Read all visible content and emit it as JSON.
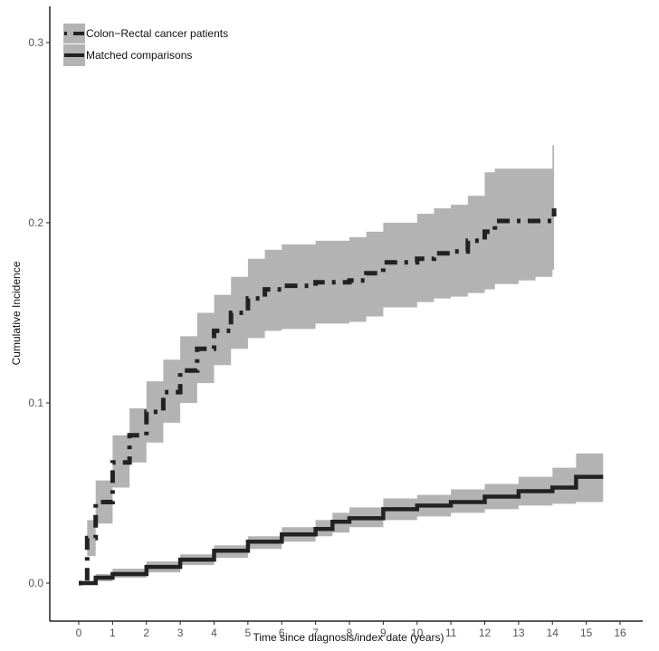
{
  "chart_data": {
    "type": "line",
    "title": "",
    "xlabel": "Time since diagnosis/index date (years)",
    "ylabel": "Cumulative Incidence",
    "xlim": [
      -0.3,
      17.2
    ],
    "ylim": [
      -0.016,
      0.31
    ],
    "x_ticks": [
      0,
      1,
      2,
      3,
      4,
      5,
      6,
      7,
      8,
      9,
      10,
      11,
      12,
      13,
      14,
      15,
      16
    ],
    "y_ticks": [
      0.0,
      0.1,
      0.2,
      0.3
    ],
    "y_tick_labels": [
      "0.0",
      "0.1",
      "0.2",
      "0.3"
    ],
    "grid": false,
    "legend_position": "top-left",
    "band_color": "#b3b3b3",
    "line_color": "#222222",
    "series": [
      {
        "name": "Colon−Rectal cancer patients",
        "style": "dashdot",
        "x": [
          0,
          0.25,
          0.5,
          1.0,
          1.5,
          2.0,
          2.5,
          3.0,
          3.5,
          4.0,
          4.5,
          5.0,
          5.5,
          6.0,
          7.0,
          8.0,
          8.5,
          9.0,
          10.0,
          10.5,
          11.0,
          11.5,
          12.0,
          12.3,
          13.0,
          13.5,
          14.0,
          14.05
        ],
        "values": [
          0,
          0.025,
          0.045,
          0.067,
          0.082,
          0.095,
          0.106,
          0.118,
          0.13,
          0.14,
          0.15,
          0.158,
          0.163,
          0.165,
          0.167,
          0.168,
          0.172,
          0.178,
          0.18,
          0.183,
          0.184,
          0.19,
          0.195,
          0.201,
          0.201,
          0.201,
          0.201,
          0.208
        ],
        "lower": [
          0,
          0.015,
          0.033,
          0.053,
          0.067,
          0.078,
          0.089,
          0.1,
          0.111,
          0.121,
          0.13,
          0.136,
          0.14,
          0.141,
          0.144,
          0.145,
          0.148,
          0.153,
          0.156,
          0.158,
          0.159,
          0.161,
          0.163,
          0.166,
          0.168,
          0.17,
          0.174,
          0.174
        ],
        "upper": [
          0,
          0.035,
          0.057,
          0.082,
          0.097,
          0.112,
          0.124,
          0.137,
          0.15,
          0.16,
          0.17,
          0.18,
          0.185,
          0.188,
          0.19,
          0.192,
          0.195,
          0.2,
          0.205,
          0.208,
          0.21,
          0.215,
          0.228,
          0.23,
          0.23,
          0.23,
          0.243,
          0.243
        ]
      },
      {
        "name": "Matched comparisons",
        "style": "solid",
        "x": [
          0,
          0.5,
          1.0,
          2.0,
          3.0,
          4.0,
          5.0,
          6.0,
          7.0,
          7.5,
          8.0,
          9.0,
          10.0,
          11.0,
          12.0,
          13.0,
          14.0,
          14.7,
          15.5
        ],
        "values": [
          0,
          0.003,
          0.005,
          0.009,
          0.013,
          0.018,
          0.023,
          0.027,
          0.03,
          0.034,
          0.036,
          0.041,
          0.043,
          0.045,
          0.048,
          0.051,
          0.053,
          0.059,
          0.059
        ],
        "lower": [
          0,
          0.001,
          0.003,
          0.006,
          0.01,
          0.014,
          0.019,
          0.023,
          0.026,
          0.028,
          0.031,
          0.035,
          0.037,
          0.039,
          0.041,
          0.043,
          0.044,
          0.045,
          0.045
        ],
        "upper": [
          0,
          0.005,
          0.008,
          0.012,
          0.016,
          0.021,
          0.026,
          0.031,
          0.035,
          0.039,
          0.042,
          0.047,
          0.049,
          0.052,
          0.055,
          0.059,
          0.064,
          0.072,
          0.072
        ]
      }
    ]
  }
}
